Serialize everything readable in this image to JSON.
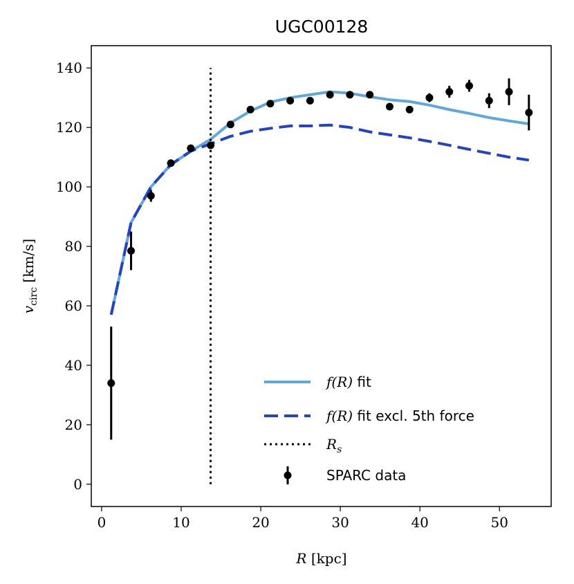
{
  "chart_data": {
    "type": "line",
    "title": "UGC00128",
    "xlabel": "R [kpc]",
    "ylabel_main": "v",
    "ylabel_sub": "circ",
    "ylabel_unit": "[km/s]",
    "xlim": [
      -1.3,
      56.5
    ],
    "ylim": [
      -7.5,
      147.5
    ],
    "xticks": [
      0,
      10,
      20,
      30,
      40,
      50
    ],
    "yticks": [
      0,
      20,
      40,
      60,
      80,
      100,
      120,
      140
    ],
    "xtick_labels": [
      "0",
      "10",
      "20",
      "30",
      "40",
      "50"
    ],
    "ytick_labels": [
      "0",
      "20",
      "40",
      "60",
      "80",
      "100",
      "120",
      "140"
    ],
    "series": [
      {
        "name": "f(R) fit",
        "legend_label": "f(R) fit",
        "style": "solid",
        "color": "#5fa8dc",
        "x": [
          1.2,
          3.7,
          6.2,
          8.7,
          11.2,
          13.7,
          16.2,
          18.7,
          21.2,
          23.7,
          26.2,
          28.7,
          31.2,
          33.7,
          36.2,
          38.7,
          41.2,
          43.7,
          46.2,
          48.7,
          51.2,
          53.7
        ],
        "values": [
          57,
          88,
          100,
          107.5,
          112,
          116,
          121.5,
          125.5,
          128.5,
          130,
          131,
          132,
          131.5,
          130.3,
          129.3,
          128.7,
          127.5,
          126,
          124.7,
          123.3,
          122.2,
          121.2
        ]
      },
      {
        "name": "f(R) fit excl. 5th force",
        "legend_label": "f(R) fit excl. 5th force",
        "style": "dashed",
        "color": "#2243c7",
        "x": [
          1.2,
          3.7,
          6.2,
          8.7,
          11.2,
          13.7,
          16.2,
          18.7,
          21.2,
          23.7,
          26.2,
          28.7,
          31.2,
          33.7,
          36.2,
          38.7,
          41.2,
          43.7,
          46.2,
          48.7,
          51.2,
          53.7
        ],
        "values": [
          57,
          88,
          100,
          107.5,
          112,
          114.5,
          117,
          118.7,
          119.7,
          120.5,
          120.5,
          120.8,
          120,
          118.5,
          117.5,
          116.5,
          115.3,
          114,
          112.6,
          111.3,
          110,
          109
        ]
      },
      {
        "name": "R_s",
        "legend_label": "R",
        "legend_sub": "s",
        "style": "dotted",
        "color": "#000000",
        "x": [
          13.7,
          13.7
        ],
        "values": [
          0,
          140
        ]
      },
      {
        "name": "SPARC data",
        "legend_label": "SPARC data",
        "style": "points",
        "color": "#000000",
        "x": [
          1.2,
          3.7,
          6.2,
          8.7,
          11.2,
          13.7,
          16.2,
          18.7,
          21.2,
          23.7,
          26.2,
          28.7,
          31.2,
          33.7,
          36.2,
          38.7,
          41.2,
          43.7,
          46.2,
          48.7,
          51.2,
          53.7
        ],
        "values": [
          34,
          78.5,
          97,
          108,
          113,
          114,
          121,
          126,
          128,
          129,
          129,
          131,
          131,
          131,
          127,
          126,
          130,
          132,
          134,
          129,
          132,
          125
        ],
        "errors": [
          19,
          6.5,
          2,
          1,
          1,
          1,
          1,
          1,
          1,
          1,
          1,
          1,
          1,
          1,
          1,
          1,
          1.5,
          2,
          2,
          2.5,
          4.5,
          6
        ]
      }
    ],
    "legend_location": "lower-right"
  }
}
